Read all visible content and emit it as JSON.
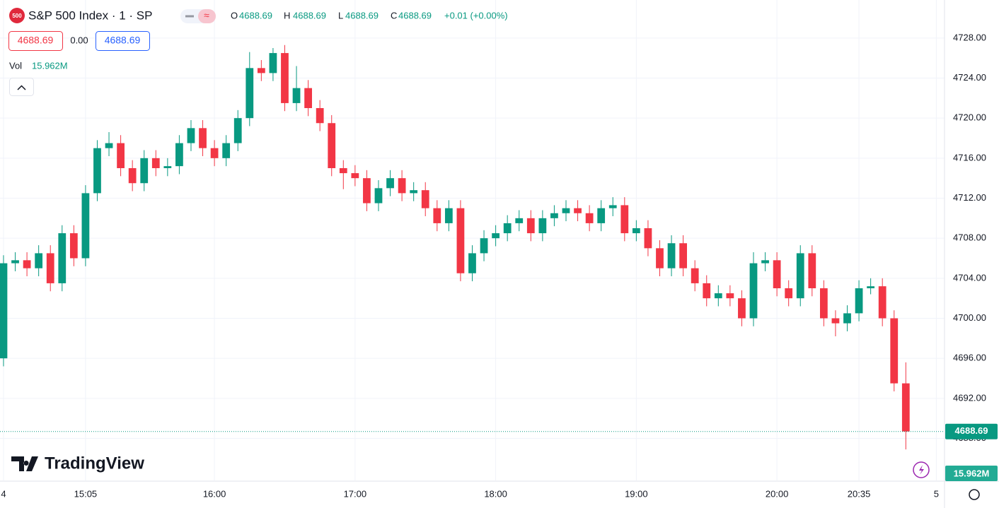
{
  "chart_data": {
    "type": "candlestick",
    "header": {
      "badge": "500",
      "title": "S&P 500 Index · 1 · SP",
      "o_label": "O",
      "open": 4688.69,
      "h_label": "H",
      "high": 4688.69,
      "l_label": "L",
      "low": 4688.69,
      "c_label": "C",
      "close": 4688.69,
      "change": "+0.01 (+0.00%)",
      "bid": 4688.69,
      "spread": {
        "value": 0,
        "label": "0.00"
      },
      "ask": 4688.69,
      "vol_label": "Vol",
      "volume": "15.962M"
    },
    "watermark": "TradingView",
    "up_color": "#089981",
    "down_color": "#f23645",
    "last_price": 4688.69,
    "x": [
      0,
      5,
      10,
      15,
      20,
      25,
      30,
      35,
      40,
      45,
      50,
      55,
      60,
      65,
      70,
      75,
      80,
      85,
      90,
      95,
      100,
      105,
      110,
      115,
      120,
      125,
      130,
      135,
      140,
      145,
      150,
      155,
      160,
      165,
      170,
      175,
      180,
      185,
      190,
      195,
      200,
      205,
      210,
      215,
      220,
      225,
      230,
      235,
      240,
      245,
      250,
      255,
      260,
      265,
      270,
      275,
      280,
      285,
      290,
      295,
      300,
      305,
      310,
      315,
      320,
      325,
      330,
      335,
      340,
      345,
      350,
      355,
      360,
      365,
      370,
      375,
      380,
      385
    ],
    "open": [
      4696,
      4705.5,
      4705.8,
      4705,
      4706.5,
      4703.5,
      4708.5,
      4706,
      4712.5,
      4717,
      4717.5,
      4715,
      4713.5,
      4716,
      4715,
      4715.2,
      4717.5,
      4719,
      4717,
      4716,
      4717.5,
      4720,
      4725,
      4724.5,
      4726.5,
      4721.5,
      4723,
      4721,
      4719.5,
      4715,
      4714.5,
      4714,
      4711.5,
      4713,
      4714,
      4712.5,
      4712.8,
      4711,
      4709.5,
      4711,
      4704.5,
      4706.5,
      4708,
      4708.5,
      4709.5,
      4710,
      4708.5,
      4710,
      4710.5,
      4711,
      4710.5,
      4709.5,
      4711,
      4711.3,
      4708.5,
      4709,
      4707,
      4705,
      4707.5,
      4705,
      4703.5,
      4702,
      4702.5,
      4702,
      4700,
      4705.5,
      4705.8,
      4703,
      4702,
      4706.5,
      4703,
      4700,
      4699.5,
      4700.5,
      4703,
      4703.2,
      4700,
      4693.5
    ],
    "high": [
      4706.3,
      4706.6,
      4706.6,
      4707.3,
      4707.3,
      4709.3,
      4709.3,
      4713.3,
      4717.8,
      4718.6,
      4718.3,
      4715.8,
      4716.8,
      4716.8,
      4716,
      4718.3,
      4719.8,
      4719.8,
      4717.8,
      4718.3,
      4720.8,
      4726.6,
      4725.8,
      4727,
      4727.3,
      4725.2,
      4723.8,
      4721.8,
      4720.3,
      4715.8,
      4715.3,
      4714.8,
      4713.8,
      4714.8,
      4714.8,
      4713.6,
      4713.6,
      4711.8,
      4711.8,
      4711.8,
      4707.3,
      4708.8,
      4709.3,
      4710.3,
      4710.8,
      4710.8,
      4710.8,
      4711.3,
      4711.8,
      4711.8,
      4711.3,
      4711.8,
      4712.1,
      4712.1,
      4709.8,
      4709.8,
      4707.8,
      4708.3,
      4708.3,
      4705.8,
      4704.3,
      4703.3,
      4703.3,
      4702.8,
      4706.6,
      4706.6,
      4706.6,
      4703.8,
      4707.3,
      4707.3,
      4703.8,
      4700.8,
      4701.3,
      4703.8,
      4704,
      4704,
      4700.8,
      4695.6
    ],
    "low": [
      4695.2,
      4704.7,
      4704.2,
      4704.2,
      4702.7,
      4702.7,
      4705.2,
      4705.2,
      4711.7,
      4716.2,
      4714.2,
      4712.7,
      4712.7,
      4714.2,
      4714.2,
      4714.4,
      4716.7,
      4716.2,
      4715.2,
      4715.2,
      4716.7,
      4719.2,
      4723.7,
      4723.7,
      4720.7,
      4720.7,
      4720.2,
      4718.7,
      4714.2,
      4712.9,
      4713.2,
      4710.7,
      4710.7,
      4712.2,
      4711.7,
      4711.7,
      4710.2,
      4708.7,
      4708.7,
      4703.7,
      4703.7,
      4705.7,
      4707.2,
      4707.7,
      4708.7,
      4707.7,
      4707.7,
      4709.2,
      4709.7,
      4709.7,
      4708.7,
      4708.7,
      4710.2,
      4707.7,
      4707.7,
      4706.2,
      4704.2,
      4704.2,
      4704.2,
      4702.7,
      4701.2,
      4701.2,
      4701.2,
      4699.2,
      4699.2,
      4704.7,
      4702.2,
      4701.2,
      4701.2,
      4702.2,
      4699.2,
      4698.2,
      4698.7,
      4699.7,
      4702.4,
      4699.2,
      4692.7,
      4686.9
    ],
    "close": [
      4705.5,
      4705.8,
      4705,
      4706.5,
      4703.5,
      4708.5,
      4706,
      4712.5,
      4717,
      4717.5,
      4715,
      4713.5,
      4716,
      4715,
      4715.2,
      4717.5,
      4719,
      4717,
      4716,
      4717.5,
      4720,
      4725,
      4724.5,
      4726.5,
      4721.5,
      4723,
      4721,
      4719.5,
      4715,
      4714.5,
      4714,
      4711.5,
      4713,
      4714,
      4712.5,
      4712.8,
      4711,
      4709.5,
      4711,
      4704.5,
      4706.5,
      4708,
      4708.5,
      4709.5,
      4710,
      4708.5,
      4710,
      4710.5,
      4711,
      4710.5,
      4709.5,
      4711,
      4711.3,
      4708.5,
      4709,
      4707,
      4705,
      4707.5,
      4705,
      4703.5,
      4702,
      4702.5,
      4702,
      4700,
      4705.5,
      4705.8,
      4703,
      4702,
      4706.5,
      4703,
      4700,
      4699.5,
      4700.5,
      4703,
      4703.2,
      4700,
      4693.5,
      4688.69
    ],
    "xlim": [
      -1.5,
      400
    ],
    "xticks": [
      {
        "value": 0,
        "label": "4"
      },
      {
        "value": 35,
        "label": "15:05"
      },
      {
        "value": 90,
        "label": "16:00"
      },
      {
        "value": 150,
        "label": "17:00"
      },
      {
        "value": 210,
        "label": "18:00"
      },
      {
        "value": 270,
        "label": "19:00"
      },
      {
        "value": 330,
        "label": "20:00"
      },
      {
        "value": 365,
        "label": "20:35"
      },
      {
        "value": 398,
        "label": "5"
      }
    ],
    "ylim": [
      4683.8,
      4731.8
    ],
    "yticks": [
      {
        "value": 4688,
        "label": "4688.00"
      },
      {
        "value": 4692,
        "label": "4692.00"
      },
      {
        "value": 4696,
        "label": "4696.00"
      },
      {
        "value": 4700,
        "label": "4700.00"
      },
      {
        "value": 4704,
        "label": "4704.00"
      },
      {
        "value": 4708,
        "label": "4708.00"
      },
      {
        "value": 4712,
        "label": "4712.00"
      },
      {
        "value": 4716,
        "label": "4716.00"
      },
      {
        "value": 4720,
        "label": "4720.00"
      },
      {
        "value": 4724,
        "label": "4724.00"
      },
      {
        "value": 4728,
        "label": "4728.00"
      }
    ],
    "grid": true
  }
}
